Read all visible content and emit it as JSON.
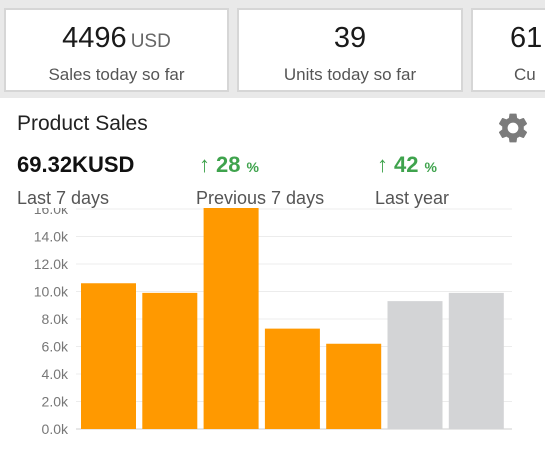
{
  "stats": [
    {
      "value": "4496",
      "unit": "USD",
      "label": "Sales today so far"
    },
    {
      "value": "39",
      "unit": "",
      "label": "Units today so far"
    },
    {
      "value": "61",
      "unit": "",
      "label": "Cu"
    }
  ],
  "panel": {
    "title": "Product Sales",
    "settings_icon": "gear-icon",
    "total": {
      "value": "69.32K",
      "unit": "USD",
      "label": "Last 7 days"
    },
    "previous": {
      "arrow": "↑",
      "value": "28",
      "unit": "%",
      "label": "Previous 7 days"
    },
    "last_year": {
      "arrow": "↑",
      "value": "42",
      "unit": "%",
      "label": "Last year"
    }
  },
  "colors": {
    "accent": "#ff9900",
    "comparison": "#d3d4d6",
    "positive": "#3fa34d"
  },
  "chart_data": {
    "type": "bar",
    "title": "",
    "xlabel": "",
    "ylabel": "",
    "ylim": [
      0,
      16000
    ],
    "yticks": [
      "0.0k",
      "2.0k",
      "4.0k",
      "6.0k",
      "8.0k",
      "10.0k",
      "12.0k",
      "14.0k",
      "16.0k"
    ],
    "grid": true,
    "series": [
      {
        "values": [
          10600,
          9900,
          16200,
          7300,
          6200
        ]
      },
      {
        "values": [
          9300,
          9900
        ]
      }
    ]
  }
}
